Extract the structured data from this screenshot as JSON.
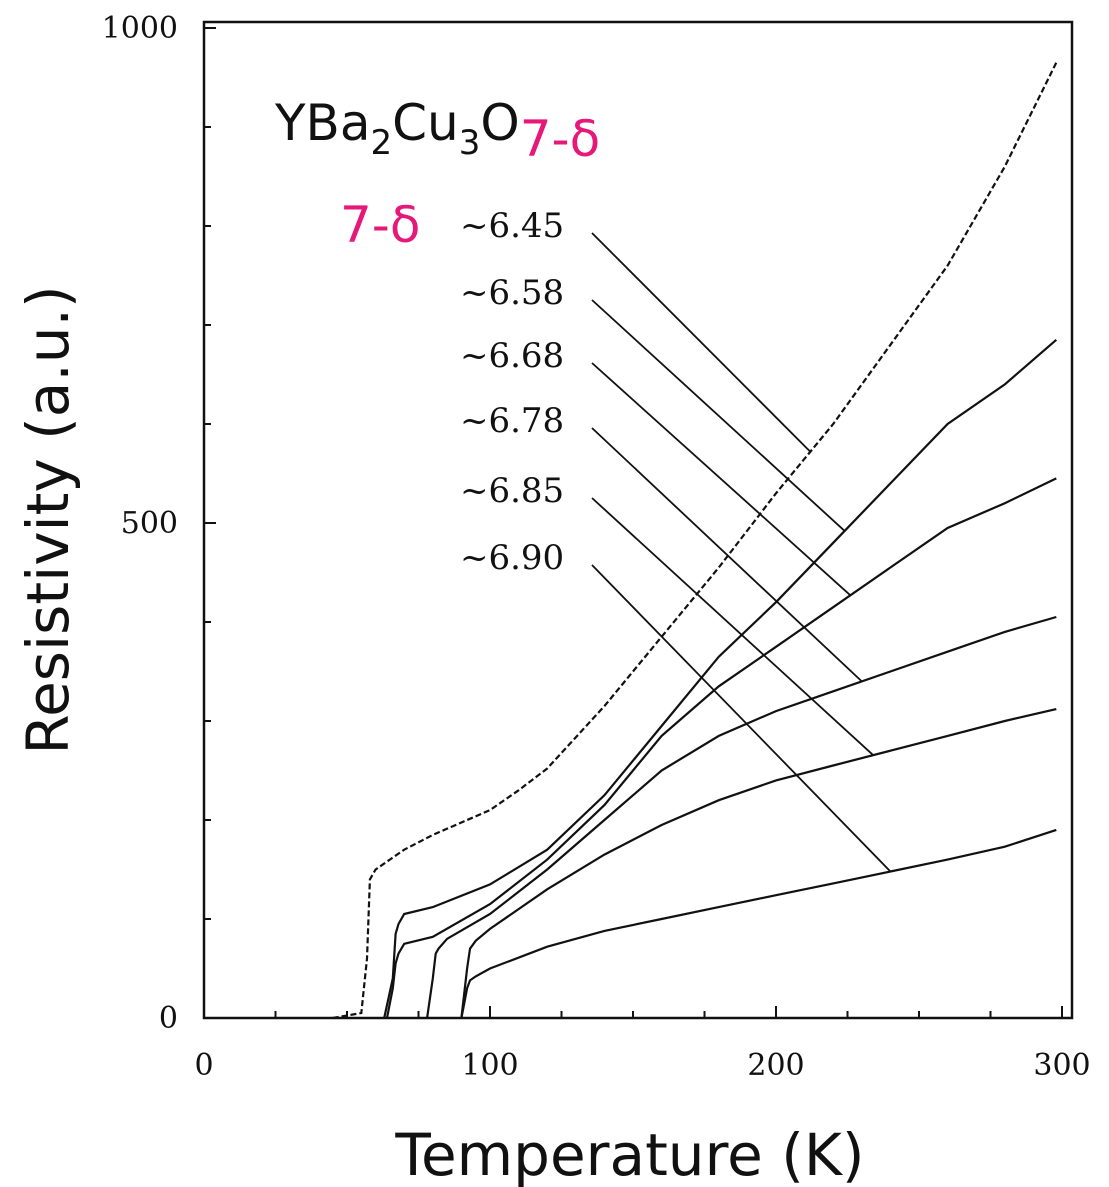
{
  "chart_data": {
    "type": "line",
    "xlabel": "Temperature (K)",
    "ylabel": "Resistivity (a.u.)",
    "xlim": [
      0,
      300
    ],
    "ylim": [
      0,
      1000
    ],
    "x_ticks": [
      "0",
      "100",
      "200",
      "300"
    ],
    "y_ticks": [
      "0",
      "500",
      "1000"
    ],
    "title_parts": {
      "base": "YBa",
      "sub1": "2",
      "mid1": "Cu",
      "sub2": "3",
      "mid2": "O",
      "sub3": "7-δ"
    },
    "legend_heading": "7-δ",
    "grid": false,
    "series": [
      {
        "name": "~6.45",
        "x": [
          45,
          55,
          57,
          58,
          60,
          70,
          80,
          100,
          110,
          120,
          140,
          160,
          180,
          200,
          220,
          240,
          260,
          280,
          298
        ],
        "y": [
          0,
          5,
          60,
          140,
          150,
          170,
          185,
          210,
          230,
          252,
          315,
          385,
          455,
          530,
          600,
          680,
          760,
          860,
          965
        ]
      },
      {
        "name": "~6.58",
        "x": [
          63,
          66,
          67,
          68,
          70,
          80,
          100,
          120,
          140,
          160,
          180,
          200,
          220,
          240,
          260,
          280,
          298
        ],
        "y": [
          0,
          40,
          85,
          95,
          105,
          112,
          135,
          170,
          225,
          295,
          365,
          420,
          480,
          540,
          600,
          640,
          685
        ]
      },
      {
        "name": "~6.68",
        "x": [
          64,
          66,
          67,
          68,
          70,
          80,
          100,
          120,
          140,
          160,
          180,
          200,
          220,
          240,
          260,
          280,
          298
        ],
        "y": [
          0,
          30,
          55,
          65,
          75,
          82,
          115,
          160,
          215,
          285,
          335,
          375,
          415,
          455,
          495,
          520,
          545
        ]
      },
      {
        "name": "~6.78",
        "x": [
          78,
          80,
          81,
          82,
          85,
          100,
          120,
          140,
          160,
          180,
          200,
          220,
          240,
          260,
          280,
          298
        ],
        "y": [
          0,
          40,
          65,
          70,
          80,
          105,
          150,
          200,
          250,
          285,
          310,
          330,
          350,
          370,
          390,
          405
        ]
      },
      {
        "name": "~6.85",
        "x": [
          90,
          92,
          93,
          95,
          100,
          120,
          140,
          160,
          180,
          200,
          220,
          240,
          260,
          280,
          298
        ],
        "y": [
          0,
          50,
          70,
          78,
          90,
          130,
          165,
          195,
          220,
          240,
          255,
          270,
          285,
          300,
          312
        ]
      },
      {
        "name": "~6.90",
        "x": [
          90,
          91,
          92,
          93,
          95,
          100,
          120,
          140,
          160,
          180,
          200,
          220,
          240,
          260,
          280,
          298
        ],
        "y": [
          0,
          15,
          30,
          38,
          42,
          50,
          72,
          88,
          100,
          112,
          124,
          136,
          148,
          160,
          173,
          190
        ]
      }
    ]
  }
}
